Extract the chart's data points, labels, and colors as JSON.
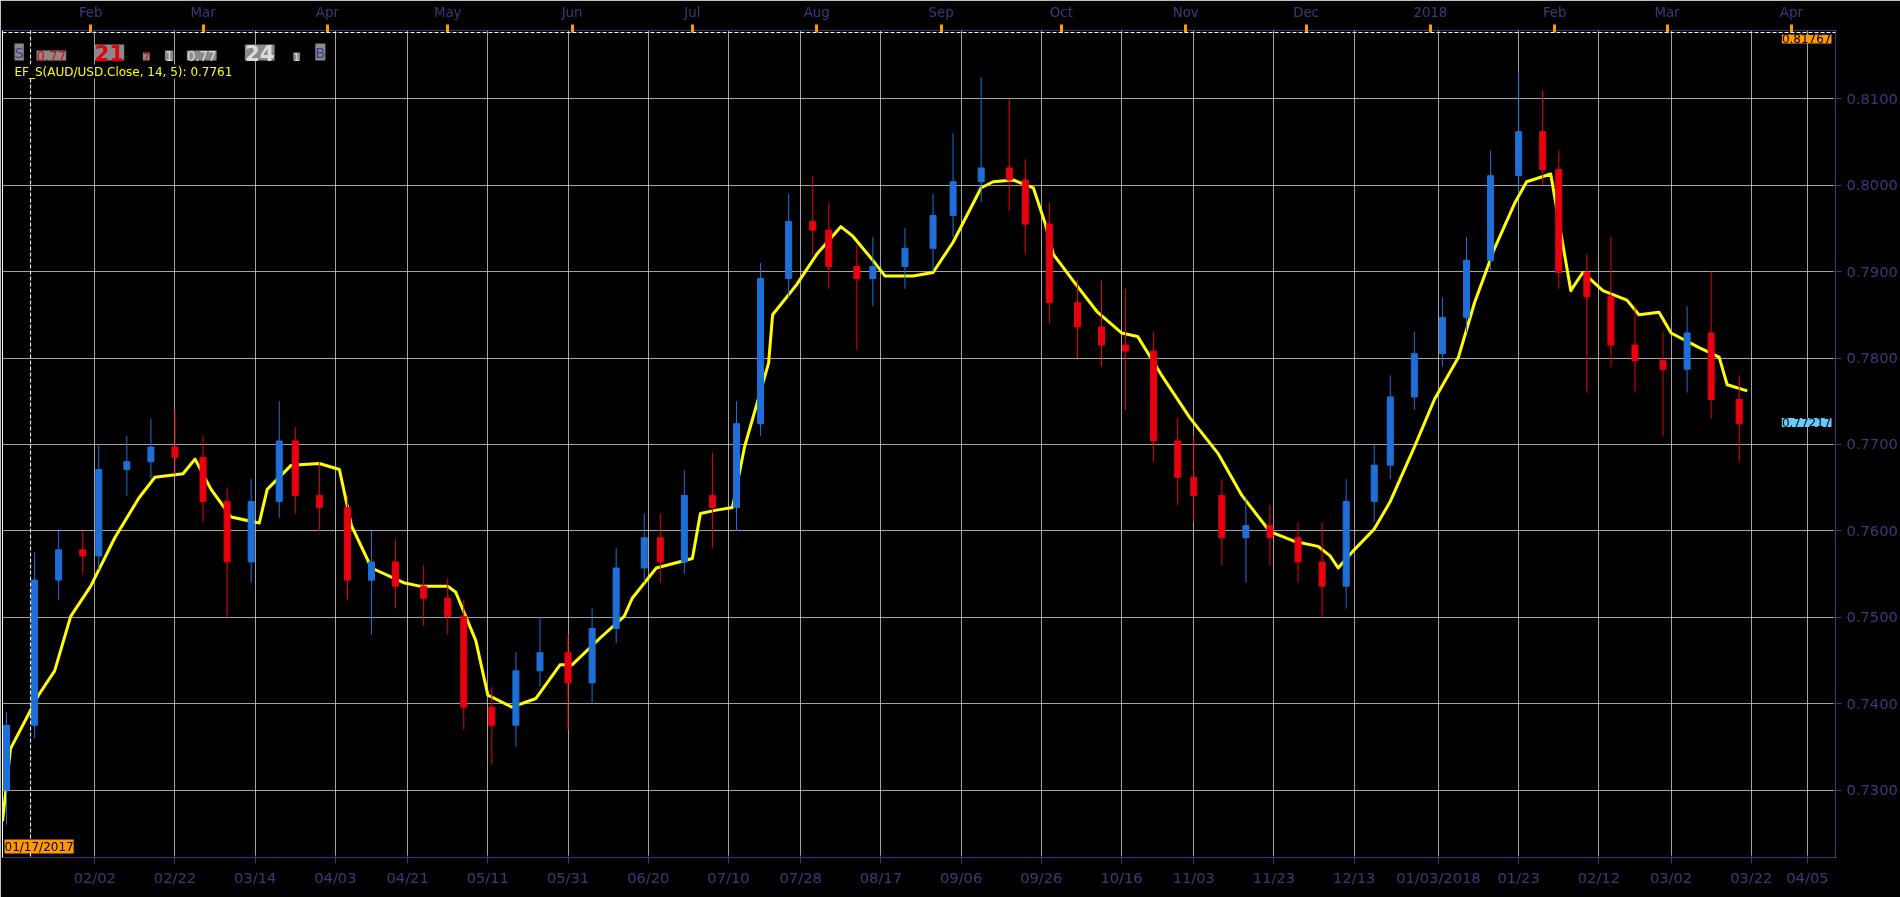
{
  "chart_data": {
    "type": "candlestick",
    "x": [
      "2017-01-11",
      "2017-01-18",
      "2017-01-24",
      "2017-01-30",
      "2017-02-03",
      "2017-02-10",
      "2017-02-16",
      "2017-02-22",
      "2017-03-01",
      "2017-03-07",
      "2017-03-13",
      "2017-03-20",
      "2017-03-24",
      "2017-03-30",
      "2017-04-06",
      "2017-04-12",
      "2017-04-18",
      "2017-04-25",
      "2017-05-01",
      "2017-05-05",
      "2017-05-12",
      "2017-05-18",
      "2017-05-24",
      "2017-05-31",
      "2017-06-06",
      "2017-06-12",
      "2017-06-19",
      "2017-06-23",
      "2017-06-29",
      "2017-07-06",
      "2017-07-12",
      "2017-07-18",
      "2017-07-25",
      "2017-07-31",
      "2017-08-04",
      "2017-08-11",
      "2017-08-15",
      "2017-08-23",
      "2017-08-30",
      "2017-09-04",
      "2017-09-11",
      "2017-09-18",
      "2017-09-22",
      "2017-09-28",
      "2017-10-05",
      "2017-10-11",
      "2017-10-17",
      "2017-10-24",
      "2017-10-30",
      "2017-11-03",
      "2017-11-10",
      "2017-11-16",
      "2017-11-22",
      "2017-11-29",
      "2017-12-05",
      "2017-12-11",
      "2017-12-18",
      "2017-12-22",
      "2017-12-28",
      "2018-01-04",
      "2018-01-10",
      "2018-01-16",
      "2018-01-23",
      "2018-01-29",
      "2018-02-02",
      "2018-02-09",
      "2018-02-15",
      "2018-02-21",
      "2018-02-28",
      "2018-03-06",
      "2018-03-12",
      "2018-03-19"
    ],
    "ohlc": [
      [
        0.73,
        0.739,
        0.726,
        0.7375
      ],
      [
        0.7375,
        0.7575,
        0.736,
        0.7543
      ],
      [
        0.7543,
        0.76,
        0.752,
        0.7578
      ],
      [
        0.7578,
        0.76,
        0.755,
        0.7571
      ],
      [
        0.7571,
        0.77,
        0.7555,
        0.7671
      ],
      [
        0.7671,
        0.771,
        0.764,
        0.768
      ],
      [
        0.768,
        0.773,
        0.766,
        0.7697
      ],
      [
        0.7697,
        0.774,
        0.7665,
        0.7685
      ],
      [
        0.7685,
        0.771,
        0.761,
        0.7634
      ],
      [
        0.7634,
        0.765,
        0.75,
        0.7564
      ],
      [
        0.7564,
        0.766,
        0.754,
        0.7634
      ],
      [
        0.7634,
        0.775,
        0.7615,
        0.7704
      ],
      [
        0.7704,
        0.772,
        0.762,
        0.7641
      ],
      [
        0.7641,
        0.768,
        0.76,
        0.7627
      ],
      [
        0.7627,
        0.764,
        0.752,
        0.7543
      ],
      [
        0.7543,
        0.76,
        0.748,
        0.7564
      ],
      [
        0.7564,
        0.759,
        0.751,
        0.7536
      ],
      [
        0.7536,
        0.756,
        0.749,
        0.7522
      ],
      [
        0.7522,
        0.7545,
        0.748,
        0.7501
      ],
      [
        0.7501,
        0.752,
        0.737,
        0.7396
      ],
      [
        0.7396,
        0.742,
        0.733,
        0.7375
      ],
      [
        0.7375,
        0.746,
        0.735,
        0.7438
      ],
      [
        0.7438,
        0.75,
        0.742,
        0.7459
      ],
      [
        0.7459,
        0.748,
        0.737,
        0.7424
      ],
      [
        0.7424,
        0.751,
        0.74,
        0.7487
      ],
      [
        0.7487,
        0.758,
        0.747,
        0.7557
      ],
      [
        0.7557,
        0.762,
        0.754,
        0.7592
      ],
      [
        0.7592,
        0.762,
        0.754,
        0.7564
      ],
      [
        0.7564,
        0.767,
        0.755,
        0.7641
      ],
      [
        0.7641,
        0.769,
        0.758,
        0.7627
      ],
      [
        0.7627,
        0.775,
        0.76,
        0.7724
      ],
      [
        0.7724,
        0.791,
        0.771,
        0.7892
      ],
      [
        0.7892,
        0.799,
        0.787,
        0.7958
      ],
      [
        0.7958,
        0.801,
        0.792,
        0.7948
      ],
      [
        0.7948,
        0.798,
        0.788,
        0.7906
      ],
      [
        0.7906,
        0.793,
        0.781,
        0.7892
      ],
      [
        0.7892,
        0.794,
        0.786,
        0.7906
      ],
      [
        0.7906,
        0.795,
        0.788,
        0.7927
      ],
      [
        0.7927,
        0.799,
        0.79,
        0.7965
      ],
      [
        0.7965,
        0.806,
        0.794,
        0.8004
      ],
      [
        0.8004,
        0.8125,
        0.798,
        0.802
      ],
      [
        0.802,
        0.81,
        0.797,
        0.8006
      ],
      [
        0.8006,
        0.803,
        0.792,
        0.7955
      ],
      [
        0.7955,
        0.798,
        0.784,
        0.7864
      ],
      [
        0.7864,
        0.789,
        0.78,
        0.7836
      ],
      [
        0.7836,
        0.789,
        0.779,
        0.7815
      ],
      [
        0.7815,
        0.788,
        0.774,
        0.7808
      ],
      [
        0.7808,
        0.783,
        0.768,
        0.7704
      ],
      [
        0.7704,
        0.773,
        0.763,
        0.7662
      ],
      [
        0.7662,
        0.771,
        0.761,
        0.7641
      ],
      [
        0.7641,
        0.766,
        0.756,
        0.7592
      ],
      [
        0.7592,
        0.764,
        0.754,
        0.7606
      ],
      [
        0.7606,
        0.763,
        0.756,
        0.7592
      ],
      [
        0.7592,
        0.761,
        0.754,
        0.7564
      ],
      [
        0.7564,
        0.761,
        0.75,
        0.7536
      ],
      [
        0.7536,
        0.766,
        0.751,
        0.7634
      ],
      [
        0.7634,
        0.77,
        0.761,
        0.7676
      ],
      [
        0.7676,
        0.778,
        0.766,
        0.7755
      ],
      [
        0.7755,
        0.783,
        0.774,
        0.7805
      ],
      [
        0.7805,
        0.787,
        0.779,
        0.7847
      ],
      [
        0.7847,
        0.794,
        0.783,
        0.7913
      ],
      [
        0.7913,
        0.804,
        0.79,
        0.8011
      ],
      [
        0.8011,
        0.8132,
        0.799,
        0.8062
      ],
      [
        0.8062,
        0.811,
        0.8,
        0.8018
      ],
      [
        0.8018,
        0.804,
        0.788,
        0.7899
      ],
      [
        0.7899,
        0.792,
        0.776,
        0.7871
      ],
      [
        0.7871,
        0.794,
        0.779,
        0.7815
      ],
      [
        0.7815,
        0.786,
        0.776,
        0.7797
      ],
      [
        0.7797,
        0.783,
        0.771,
        0.7787
      ],
      [
        0.7787,
        0.786,
        0.776,
        0.7829
      ],
      [
        0.7829,
        0.79,
        0.773,
        0.7752
      ],
      [
        0.7752,
        0.778,
        0.768,
        0.7724
      ]
    ],
    "colors": [
      "#1f6fd8",
      "#1f6fd8",
      "#1f6fd8",
      "#e8000f",
      "#1f6fd8",
      "#1f6fd8",
      "#1f6fd8",
      "#e8000f",
      "#e8000f",
      "#e8000f",
      "#1f6fd8",
      "#1f6fd8",
      "#e8000f",
      "#e8000f",
      "#e8000f",
      "#1f6fd8",
      "#e8000f",
      "#e8000f",
      "#e8000f",
      "#e8000f",
      "#e8000f",
      "#1f6fd8",
      "#1f6fd8",
      "#e8000f",
      "#1f6fd8",
      "#1f6fd8",
      "#1f6fd8",
      "#e8000f",
      "#1f6fd8",
      "#e8000f",
      "#1f6fd8",
      "#1f6fd8",
      "#1f6fd8",
      "#e8000f",
      "#e8000f",
      "#e8000f",
      "#1f6fd8",
      "#1f6fd8",
      "#1f6fd8",
      "#1f6fd8",
      "#1f6fd8",
      "#e8000f",
      "#e8000f",
      "#e8000f",
      "#e8000f",
      "#e8000f",
      "#e8000f",
      "#e8000f",
      "#e8000f",
      "#e8000f",
      "#e8000f",
      "#1f6fd8",
      "#e8000f",
      "#e8000f",
      "#e8000f",
      "#1f6fd8",
      "#1f6fd8",
      "#1f6fd8",
      "#1f6fd8",
      "#1f6fd8",
      "#1f6fd8",
      "#1f6fd8",
      "#1f6fd8",
      "#e8000f",
      "#e8000f",
      "#e8000f",
      "#e8000f",
      "#e8000f",
      "#e8000f",
      "#1f6fd8",
      "#e8000f",
      "#e8000f"
    ],
    "series": [
      {
        "type": "line",
        "name": "EF_S(AUD/USD.Close, 14, 5): 0.7761",
        "color": "#ffff00",
        "x": [
          "2017-01-10",
          "2017-01-12",
          "2017-01-19",
          "2017-01-23",
          "2017-01-27",
          "2017-02-01",
          "2017-02-07",
          "2017-02-13",
          "2017-02-17",
          "2017-02-24",
          "2017-02-27",
          "2017-03-03",
          "2017-03-08",
          "2017-03-15",
          "2017-03-17",
          "2017-03-23",
          "2017-03-30",
          "2017-04-04",
          "2017-04-07",
          "2017-04-12",
          "2017-04-20",
          "2017-04-24",
          "2017-05-01",
          "2017-05-03",
          "2017-05-08",
          "2017-05-11",
          "2017-05-17",
          "2017-05-23",
          "2017-05-29",
          "2017-06-01",
          "2017-06-08",
          "2017-06-14",
          "2017-06-16",
          "2017-06-22",
          "2017-07-01",
          "2017-07-03",
          "2017-07-07",
          "2017-07-11",
          "2017-07-14",
          "2017-07-20",
          "2017-07-21",
          "2017-07-27",
          "2017-08-01",
          "2017-08-07",
          "2017-08-10",
          "2017-08-15",
          "2017-08-18",
          "2017-08-25",
          "2017-08-30",
          "2017-09-04",
          "2017-09-11",
          "2017-09-14",
          "2017-09-19",
          "2017-09-24",
          "2017-09-27",
          "2017-09-29",
          "2017-10-04",
          "2017-10-10",
          "2017-10-16",
          "2017-10-20",
          "2017-10-26",
          "2017-11-02",
          "2017-11-09",
          "2017-11-15",
          "2017-11-22",
          "2017-11-28",
          "2017-12-04",
          "2017-12-07",
          "2017-12-09",
          "2017-12-13",
          "2017-12-18",
          "2017-12-22",
          "2017-12-28",
          "2018-01-02",
          "2018-01-08",
          "2018-01-12",
          "2018-01-17",
          "2018-01-22",
          "2018-01-25",
          "2018-01-31",
          "2018-02-05",
          "2018-02-08",
          "2018-02-13",
          "2018-02-19",
          "2018-02-22",
          "2018-02-27",
          "2018-03-02",
          "2018-03-09",
          "2018-03-14",
          "2018-03-16",
          "2018-03-21"
        ],
        "values": [
          0.7264,
          0.7348,
          0.741,
          0.7438,
          0.7501,
          0.7536,
          0.7592,
          0.7638,
          0.7662,
          0.7666,
          0.7683,
          0.7648,
          0.7616,
          0.7609,
          0.7648,
          0.7676,
          0.7678,
          0.7671,
          0.7606,
          0.7557,
          0.754,
          0.7536,
          0.7536,
          0.7529,
          0.7473,
          0.741,
          0.7396,
          0.7406,
          0.7445,
          0.7445,
          0.7476,
          0.7501,
          0.7522,
          0.7557,
          0.7568,
          0.762,
          0.7624,
          0.7627,
          0.7697,
          0.7794,
          0.785,
          0.7885,
          0.792,
          0.7952,
          0.7941,
          0.7913,
          0.7895,
          0.7895,
          0.7899,
          0.7934,
          0.7997,
          0.8004,
          0.8006,
          0.7997,
          0.7955,
          0.792,
          0.7889,
          0.7853,
          0.7829,
          0.7825,
          0.778,
          0.7731,
          0.769,
          0.7641,
          0.7599,
          0.7588,
          0.7582,
          0.7571,
          0.7557,
          0.7578,
          0.7602,
          0.7634,
          0.7697,
          0.7752,
          0.7801,
          0.7864,
          0.7927,
          0.7979,
          0.8004,
          0.8013,
          0.7878,
          0.7899,
          0.7878,
          0.7867,
          0.785,
          0.7853,
          0.7829,
          0.7812,
          0.7801,
          0.7769,
          0.7762
        ]
      }
    ],
    "xlim": [
      "2017-01-10",
      "2018-04-12"
    ],
    "ylim": [
      0.7222,
      0.8179
    ],
    "xticks": [
      {
        "value": "2017-02-02",
        "label": "02/02"
      },
      {
        "value": "2017-02-22",
        "label": "02/22"
      },
      {
        "value": "2017-03-14",
        "label": "03/14"
      },
      {
        "value": "2017-04-03",
        "label": "04/03"
      },
      {
        "value": "2017-04-21",
        "label": "04/21"
      },
      {
        "value": "2017-05-11",
        "label": "05/11"
      },
      {
        "value": "2017-05-31",
        "label": "05/31"
      },
      {
        "value": "2017-06-20",
        "label": "06/20"
      },
      {
        "value": "2017-07-10",
        "label": "07/10"
      },
      {
        "value": "2017-07-28",
        "label": "07/28"
      },
      {
        "value": "2017-08-17",
        "label": "08/17"
      },
      {
        "value": "2017-09-06",
        "label": "09/06"
      },
      {
        "value": "2017-09-26",
        "label": "09/26"
      },
      {
        "value": "2017-10-16",
        "label": "10/16"
      },
      {
        "value": "2017-11-03",
        "label": "11/03"
      },
      {
        "value": "2017-11-23",
        "label": "11/23"
      },
      {
        "value": "2017-12-13",
        "label": "12/13"
      },
      {
        "value": "2018-01-03",
        "label": "01/03/2018"
      },
      {
        "value": "2018-01-23",
        "label": "01/23"
      },
      {
        "value": "2018-02-12",
        "label": "02/12"
      },
      {
        "value": "2018-03-02",
        "label": "03/02"
      },
      {
        "value": "2018-03-22",
        "label": "03/22"
      },
      {
        "value": "2018-04-05",
        "label": "04/05"
      }
    ],
    "x2lim": [
      "2017-01-10",
      "2018-04-12"
    ],
    "x2ticks": [
      {
        "value": "2017-02-01",
        "label": "Feb"
      },
      {
        "value": "2017-03-01",
        "label": "Mar"
      },
      {
        "value": "2017-04-01",
        "label": "Apr"
      },
      {
        "value": "2017-05-01",
        "label": "May"
      },
      {
        "value": "2017-06-01",
        "label": "Jun"
      },
      {
        "value": "2017-07-01",
        "label": "Jul"
      },
      {
        "value": "2017-08-01",
        "label": "Aug"
      },
      {
        "value": "2017-09-01",
        "label": "Sep"
      },
      {
        "value": "2017-10-01",
        "label": "Oct"
      },
      {
        "value": "2017-11-01",
        "label": "Nov"
      },
      {
        "value": "2017-12-01",
        "label": "Dec"
      },
      {
        "value": "2018-01-01",
        "label": "2018"
      },
      {
        "value": "2018-02-01",
        "label": "Feb"
      },
      {
        "value": "2018-03-01",
        "label": "Mar"
      },
      {
        "value": "2018-04-01",
        "label": "Apr"
      }
    ],
    "yticks": [
      {
        "value": 0.73,
        "label": "0.7300"
      },
      {
        "value": 0.74,
        "label": "0.7400"
      },
      {
        "value": 0.75,
        "label": "0.7500"
      },
      {
        "value": 0.76,
        "label": "0.7600"
      },
      {
        "value": 0.77,
        "label": "0.7700"
      },
      {
        "value": 0.78,
        "label": "0.7800"
      },
      {
        "value": 0.79,
        "label": "0.7900"
      },
      {
        "value": 0.8,
        "label": "0.8000"
      },
      {
        "value": 0.81,
        "label": "0.8100"
      }
    ],
    "ref_lines": [
      {
        "axis": "x",
        "value": "2017-01-17",
        "label": "01/17/2017",
        "color": "#ffffff",
        "line_style": "dashed"
      },
      {
        "axis": "y",
        "value": 0.81767,
        "label": "0.81767",
        "color": "#ffffff",
        "line_style": "dashed"
      }
    ],
    "annotations": [
      "0.77217",
      "S",
      "0.77",
      "21",
      "7",
      "1",
      "0.77",
      "24",
      "1",
      "B"
    ],
    "grid": true
  }
}
